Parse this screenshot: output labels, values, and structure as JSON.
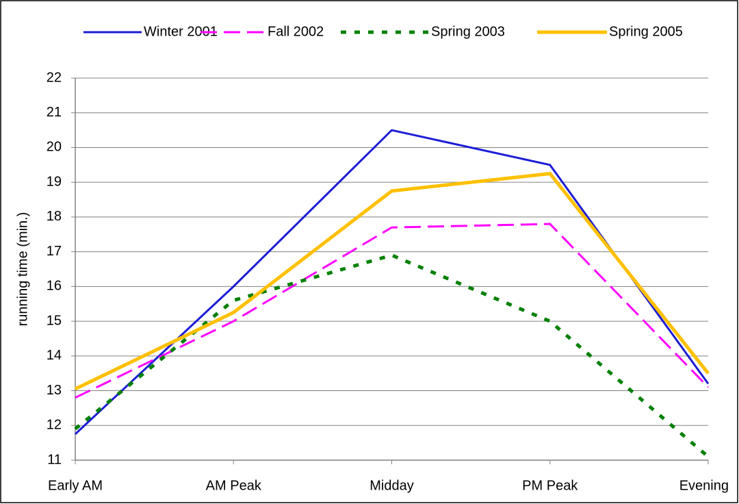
{
  "chart_data": {
    "type": "line",
    "y_label": "running time (min.)",
    "categories": [
      "Early AM",
      "AM Peak",
      "Midday",
      "PM Peak",
      "Evening"
    ],
    "series": [
      {
        "name": "Winter 2001",
        "color": "#1c1cd6",
        "dash": "solid",
        "line_width": 3,
        "values": [
          11.75,
          16.0,
          20.5,
          19.5,
          13.2
        ]
      },
      {
        "name": "Fall 2002",
        "color": "#ff00ff",
        "dash": "dashed",
        "line_width": 3,
        "values": [
          12.8,
          15.0,
          17.7,
          17.8,
          13.1
        ]
      },
      {
        "name": "Spring 2003",
        "color": "#008000",
        "dash": "dotted",
        "line_width": 5,
        "values": [
          11.9,
          15.6,
          16.9,
          15.0,
          11.1
        ]
      },
      {
        "name": "Spring 2005",
        "color": "#ffc000",
        "dash": "solid",
        "line_width": 5,
        "values": [
          13.05,
          15.25,
          18.75,
          19.25,
          13.5
        ]
      }
    ],
    "ylim": [
      11,
      22
    ],
    "yticks": [
      11,
      12,
      13,
      14,
      15,
      16,
      17,
      18,
      19,
      20,
      21,
      22
    ],
    "grid": true,
    "legend": "top"
  }
}
